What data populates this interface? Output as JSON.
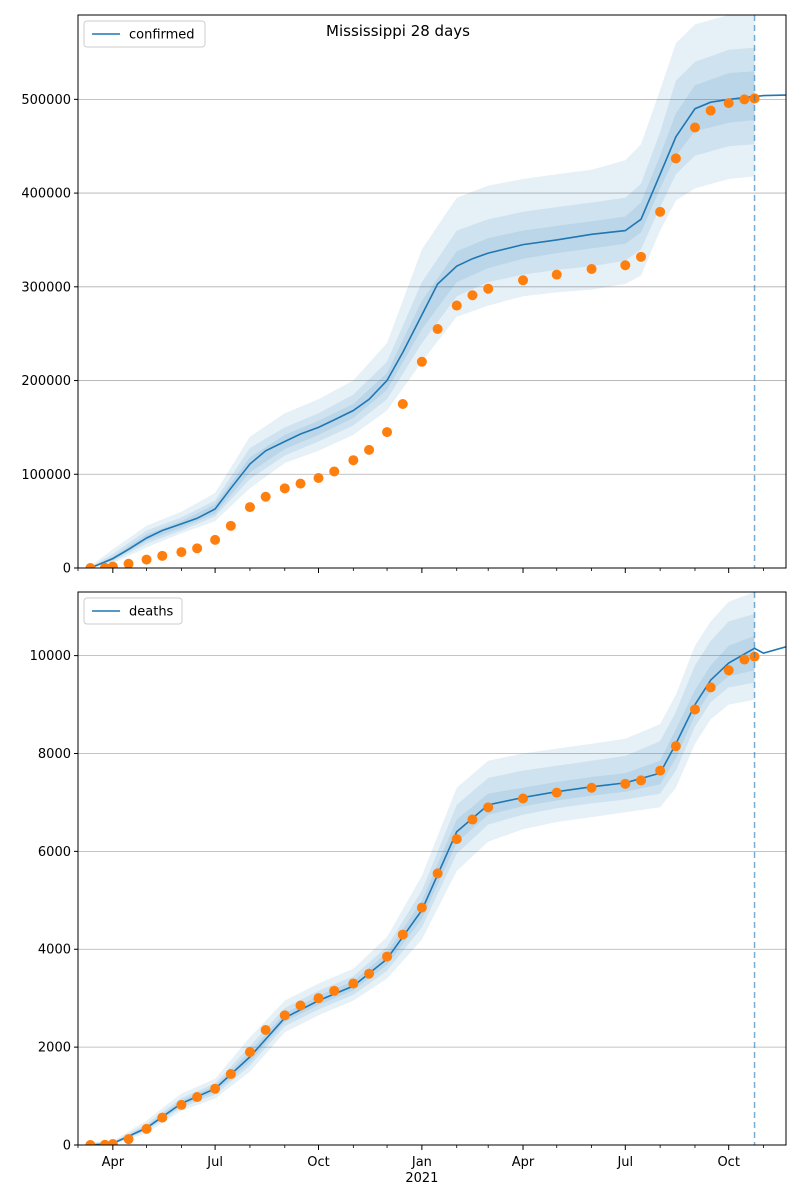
{
  "figure": {
    "title": "Mississippi 28 days",
    "x_year_label": "2021",
    "x_month_labels": [
      "Apr",
      "Jul",
      "Oct",
      "Jan",
      "Apr",
      "Jul",
      "Oct"
    ]
  },
  "colors": {
    "model_line": "#1f77b4",
    "observed_points": "#ff7f0e",
    "bands": "#1f77b4",
    "grid": "#b0b0b0",
    "forecast_marker": "#1f77b4"
  },
  "chart_data": [
    {
      "type": "line",
      "legend": "confirmed",
      "legend_position": "top-left",
      "grid": "horizontal",
      "x_unit": "date",
      "xlim": [
        "2020-03-01",
        "2021-11-21"
      ],
      "ylim": [
        0,
        590000
      ],
      "yticks": [
        0,
        100000,
        200000,
        300000,
        400000,
        500000
      ],
      "ytick_labels": [
        "0",
        "100000",
        "200000",
        "300000",
        "400000",
        "500000"
      ],
      "forecast_start": "2021-10-24",
      "model_median": {
        "x": [
          "2020-03-12",
          "2020-04-01",
          "2020-04-15",
          "2020-05-01",
          "2020-05-15",
          "2020-06-01",
          "2020-06-15",
          "2020-07-01",
          "2020-07-15",
          "2020-08-01",
          "2020-08-15",
          "2020-09-01",
          "2020-09-15",
          "2020-10-01",
          "2020-10-15",
          "2020-11-01",
          "2020-11-15",
          "2020-12-01",
          "2020-12-15",
          "2021-01-01",
          "2021-01-15",
          "2021-02-01",
          "2021-02-15",
          "2021-03-01",
          "2021-04-01",
          "2021-05-01",
          "2021-06-01",
          "2021-07-01",
          "2021-07-15",
          "2021-08-01",
          "2021-08-15",
          "2021-09-01",
          "2021-09-15",
          "2021-10-01",
          "2021-10-15",
          "2021-10-24",
          "2021-11-01",
          "2021-11-21"
        ],
        "y": [
          0,
          10000,
          20000,
          32000,
          40000,
          47000,
          53000,
          63000,
          85000,
          111000,
          125000,
          135000,
          143000,
          150000,
          158000,
          168000,
          180000,
          200000,
          230000,
          270000,
          303000,
          322000,
          330000,
          336000,
          345000,
          350000,
          356000,
          360000,
          372000,
          420000,
          460000,
          490000,
          497000,
          500000,
          502000,
          503000,
          504000,
          504500
        ]
      },
      "bands": [
        {
          "x": [
            "2020-03-12",
            "2020-04-01",
            "2020-05-01",
            "2020-06-01",
            "2020-07-01",
            "2020-08-01",
            "2020-09-01",
            "2020-10-01",
            "2020-11-01",
            "2020-12-01",
            "2021-01-01",
            "2021-02-01",
            "2021-03-01",
            "2021-04-01",
            "2021-05-01",
            "2021-06-01",
            "2021-07-01",
            "2021-07-15",
            "2021-08-01",
            "2021-08-15",
            "2021-09-01",
            "2021-10-01",
            "2021-10-24"
          ],
          "lower": [
            0,
            5000,
            22000,
            37000,
            50000,
            85000,
            112000,
            125000,
            142000,
            168000,
            220000,
            268000,
            280000,
            290000,
            294000,
            297000,
            303000,
            312000,
            360000,
            392000,
            405000,
            415000,
            418000
          ],
          "upper": [
            2000,
            20000,
            45000,
            60000,
            80000,
            140000,
            165000,
            180000,
            200000,
            240000,
            340000,
            395000,
            408000,
            415000,
            420000,
            425000,
            435000,
            452000,
            510000,
            560000,
            580000,
            590000,
            590000
          ]
        },
        {
          "x": [
            "2020-03-12",
            "2020-04-01",
            "2020-05-01",
            "2020-06-01",
            "2020-07-01",
            "2020-08-01",
            "2020-09-01",
            "2020-10-01",
            "2020-11-01",
            "2020-12-01",
            "2021-01-01",
            "2021-02-01",
            "2021-03-01",
            "2021-04-01",
            "2021-05-01",
            "2021-06-01",
            "2021-07-01",
            "2021-07-15",
            "2021-08-01",
            "2021-08-15",
            "2021-09-01",
            "2021-10-01",
            "2021-10-24"
          ],
          "lower": [
            0,
            7000,
            26000,
            40000,
            55000,
            95000,
            120000,
            135000,
            152000,
            180000,
            240000,
            290000,
            305000,
            313000,
            318000,
            322000,
            328000,
            340000,
            385000,
            420000,
            440000,
            450000,
            452000
          ],
          "upper": [
            1000,
            15000,
            40000,
            54000,
            72000,
            128000,
            150000,
            165000,
            185000,
            220000,
            305000,
            360000,
            372000,
            380000,
            385000,
            390000,
            395000,
            410000,
            465000,
            520000,
            540000,
            553000,
            555000
          ]
        },
        {
          "x": [
            "2020-03-12",
            "2020-04-01",
            "2020-05-01",
            "2020-06-01",
            "2020-07-01",
            "2020-08-01",
            "2020-09-01",
            "2020-10-01",
            "2020-11-01",
            "2020-12-01",
            "2021-01-01",
            "2021-02-01",
            "2021-03-01",
            "2021-04-01",
            "2021-05-01",
            "2021-06-01",
            "2021-07-01",
            "2021-07-15",
            "2021-08-01",
            "2021-08-15",
            "2021-09-01",
            "2021-10-01",
            "2021-10-24"
          ],
          "lower": [
            0,
            8500,
            29000,
            43000,
            58000,
            102000,
            127000,
            142000,
            160000,
            190000,
            255000,
            305000,
            320000,
            330000,
            336000,
            341000,
            346000,
            358000,
            405000,
            440000,
            466000,
            475000,
            478000
          ],
          "upper": [
            500,
            12000,
            36000,
            50000,
            68000,
            118000,
            142000,
            157000,
            175000,
            208000,
            285000,
            338000,
            352000,
            360000,
            365000,
            370000,
            375000,
            390000,
            440000,
            485000,
            515000,
            528000,
            530000
          ]
        }
      ],
      "observed": {
        "x": [
          "2020-03-12",
          "2020-03-25",
          "2020-04-01",
          "2020-04-15",
          "2020-05-01",
          "2020-05-15",
          "2020-06-01",
          "2020-06-15",
          "2020-07-01",
          "2020-07-15",
          "2020-08-01",
          "2020-08-15",
          "2020-09-01",
          "2020-09-15",
          "2020-10-01",
          "2020-10-15",
          "2020-11-01",
          "2020-11-15",
          "2020-12-01",
          "2020-12-15",
          "2021-01-01",
          "2021-01-15",
          "2021-02-01",
          "2021-02-15",
          "2021-03-01",
          "2021-04-01",
          "2021-05-01",
          "2021-06-01",
          "2021-07-01",
          "2021-07-15",
          "2021-08-01",
          "2021-08-15",
          "2021-09-01",
          "2021-09-15",
          "2021-10-01",
          "2021-10-15",
          "2021-10-24"
        ],
        "y": [
          0,
          200,
          1500,
          4500,
          9000,
          13000,
          17000,
          21000,
          30000,
          45000,
          65000,
          76000,
          85000,
          90000,
          96000,
          103000,
          115000,
          126000,
          145000,
          175000,
          220000,
          255000,
          280000,
          291000,
          298000,
          307000,
          313000,
          319000,
          323000,
          332000,
          380000,
          437000,
          470000,
          488000,
          496000,
          500000,
          501000
        ]
      }
    },
    {
      "type": "line",
      "legend": "deaths",
      "legend_position": "top-left",
      "grid": "horizontal",
      "x_unit": "date",
      "xlim": [
        "2020-03-01",
        "2021-11-21"
      ],
      "ylim": [
        0,
        11300
      ],
      "yticks": [
        0,
        2000,
        4000,
        6000,
        8000,
        10000
      ],
      "ytick_labels": [
        "0",
        "2000",
        "4000",
        "6000",
        "8000",
        "10000"
      ],
      "forecast_start": "2021-10-24",
      "model_median": {
        "x": [
          "2020-03-12",
          "2020-04-01",
          "2020-05-01",
          "2020-06-01",
          "2020-07-01",
          "2020-08-01",
          "2020-09-01",
          "2020-10-01",
          "2020-11-01",
          "2020-12-01",
          "2021-01-01",
          "2021-02-01",
          "2021-03-01",
          "2021-04-01",
          "2021-05-01",
          "2021-06-01",
          "2021-07-01",
          "2021-08-01",
          "2021-08-15",
          "2021-09-01",
          "2021-09-15",
          "2021-10-01",
          "2021-10-24",
          "2021-11-01",
          "2021-11-21"
        ],
        "y": [
          0,
          30,
          350,
          850,
          1150,
          1800,
          2600,
          2950,
          3250,
          3800,
          4800,
          6400,
          6950,
          7100,
          7220,
          7320,
          7400,
          7600,
          8200,
          9000,
          9500,
          9850,
          10150,
          10050,
          10180
        ]
      },
      "bands": [
        {
          "x": [
            "2020-03-12",
            "2020-04-01",
            "2020-05-01",
            "2020-06-01",
            "2020-07-01",
            "2020-08-01",
            "2020-09-01",
            "2020-10-01",
            "2020-11-01",
            "2020-12-01",
            "2021-01-01",
            "2021-02-01",
            "2021-03-01",
            "2021-04-01",
            "2021-05-01",
            "2021-06-01",
            "2021-07-01",
            "2021-08-01",
            "2021-08-15",
            "2021-09-01",
            "2021-09-15",
            "2021-10-01",
            "2021-10-24"
          ],
          "lower": [
            0,
            10,
            240,
            700,
            950,
            1500,
            2300,
            2650,
            2950,
            3400,
            4200,
            5600,
            6200,
            6450,
            6600,
            6700,
            6800,
            6900,
            7300,
            8200,
            8700,
            9000,
            9100
          ],
          "upper": [
            60,
            80,
            500,
            1050,
            1350,
            2200,
            2950,
            3300,
            3600,
            4250,
            5500,
            7300,
            7850,
            8000,
            8100,
            8200,
            8300,
            8600,
            9200,
            10200,
            10700,
            11100,
            11300
          ]
        },
        {
          "x": [
            "2020-03-12",
            "2020-04-01",
            "2020-05-01",
            "2020-06-01",
            "2020-07-01",
            "2020-08-01",
            "2020-09-01",
            "2020-10-01",
            "2020-11-01",
            "2020-12-01",
            "2021-01-01",
            "2021-02-01",
            "2021-03-01",
            "2021-04-01",
            "2021-05-01",
            "2021-06-01",
            "2021-07-01",
            "2021-08-01",
            "2021-08-15",
            "2021-09-01",
            "2021-09-15",
            "2021-10-01",
            "2021-10-24"
          ],
          "lower": [
            0,
            20,
            290,
            760,
            1030,
            1620,
            2430,
            2770,
            3070,
            3560,
            4450,
            5950,
            6550,
            6750,
            6880,
            6980,
            7060,
            7180,
            7650,
            8550,
            9050,
            9350,
            9450
          ],
          "upper": [
            40,
            60,
            430,
            960,
            1260,
            2020,
            2800,
            3150,
            3450,
            4050,
            5200,
            6950,
            7500,
            7650,
            7750,
            7850,
            7950,
            8250,
            8850,
            9800,
            10300,
            10700,
            10850
          ]
        },
        {
          "x": [
            "2020-03-12",
            "2020-04-01",
            "2020-05-01",
            "2020-06-01",
            "2020-07-01",
            "2020-08-01",
            "2020-09-01",
            "2020-10-01",
            "2020-11-01",
            "2020-12-01",
            "2021-01-01",
            "2021-02-01",
            "2021-03-01",
            "2021-04-01",
            "2021-05-01",
            "2021-06-01",
            "2021-07-01",
            "2021-08-01",
            "2021-08-15",
            "2021-09-01",
            "2021-09-15",
            "2021-10-01",
            "2021-10-24"
          ],
          "lower": [
            0,
            25,
            320,
            800,
            1080,
            1700,
            2520,
            2860,
            3160,
            3680,
            4620,
            6180,
            6750,
            6920,
            7040,
            7140,
            7220,
            7370,
            7900,
            8780,
            9270,
            9580,
            9700
          ],
          "upper": [
            25,
            45,
            390,
            910,
            1210,
            1910,
            2690,
            3050,
            3350,
            3930,
            4990,
            6650,
            7180,
            7300,
            7420,
            7520,
            7600,
            7850,
            8500,
            9300,
            9800,
            10200,
            10400
          ]
        }
      ],
      "observed": {
        "x": [
          "2020-03-12",
          "2020-03-25",
          "2020-04-01",
          "2020-04-15",
          "2020-05-01",
          "2020-05-15",
          "2020-06-01",
          "2020-06-15",
          "2020-07-01",
          "2020-07-15",
          "2020-08-01",
          "2020-08-15",
          "2020-09-01",
          "2020-09-15",
          "2020-10-01",
          "2020-10-15",
          "2020-11-01",
          "2020-11-15",
          "2020-12-01",
          "2020-12-15",
          "2021-01-01",
          "2021-01-15",
          "2021-02-01",
          "2021-02-15",
          "2021-03-01",
          "2021-04-01",
          "2021-05-01",
          "2021-06-01",
          "2021-07-01",
          "2021-07-15",
          "2021-08-01",
          "2021-08-15",
          "2021-09-01",
          "2021-09-15",
          "2021-10-01",
          "2021-10-15",
          "2021-10-24"
        ],
        "y": [
          0,
          5,
          20,
          120,
          330,
          560,
          820,
          980,
          1150,
          1450,
          1900,
          2350,
          2650,
          2850,
          3000,
          3150,
          3300,
          3500,
          3850,
          4300,
          4850,
          5550,
          6250,
          6650,
          6900,
          7080,
          7200,
          7300,
          7380,
          7450,
          7650,
          8150,
          8900,
          9350,
          9700,
          9920,
          9980
        ]
      }
    }
  ]
}
